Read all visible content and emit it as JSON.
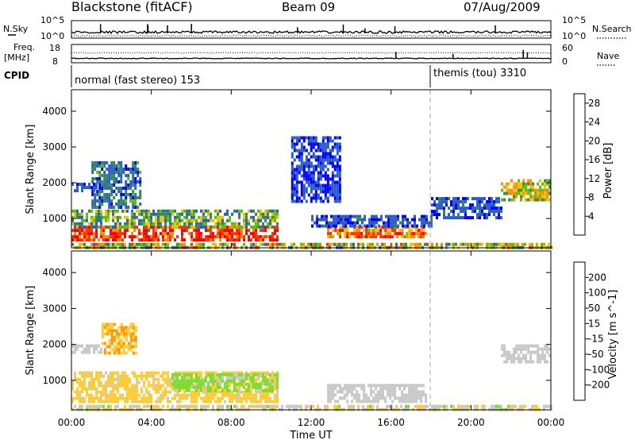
{
  "header": {
    "station": "Blackstone (fitACF)",
    "beam": "Beam 09",
    "date": "07/Aug/2009"
  },
  "summary_panels": {
    "nsky_label": "N.Sky",
    "nsearch_label": "N.Search",
    "freq_label_line1": "Freq.",
    "freq_label_line2": "[MHz]",
    "nave_label": "Nave",
    "cpid_label": "CPID",
    "nsky_ticks": [
      "10^5",
      "10^0"
    ],
    "nsearch_ticks": [
      "10^5",
      "10^0"
    ],
    "freq_ticks": [
      "18",
      "8"
    ],
    "nave_ticks": [
      "60",
      "0"
    ],
    "cpid_segments": [
      {
        "name": "normal (fast stereo) 153",
        "start_hour": 0,
        "end_hour": 18
      },
      {
        "name": "themis (tou) 3310",
        "start_hour": 18,
        "end_hour": 24
      }
    ]
  },
  "colors": {
    "power_scale": [
      "#0000ff",
      "#2a5ec8",
      "#2e8b57",
      "#60c000",
      "#f2c200",
      "#ff8c00",
      "#ff3300",
      "#ff0000"
    ],
    "velocity_scale": [
      "#ff0000",
      "#ff6600",
      "#ff9900",
      "#ffcc33",
      "#c8c8c8",
      "#77dd33",
      "#33aa33",
      "#3355cc",
      "#0000cc"
    ]
  },
  "chart_data": [
    {
      "type": "heatmap",
      "panel": "power",
      "ylabel": "Slant Range [km]",
      "xlabel": "Time UT",
      "x_ticks": [
        "00:00",
        "04:00",
        "08:00",
        "12:00",
        "16:00",
        "20:00",
        "00:00"
      ],
      "y_ticks": [
        "1000",
        "2000",
        "3000",
        "4000"
      ],
      "xlim_hours": [
        0,
        24
      ],
      "ylim_km": [
        180,
        4600
      ],
      "colorbar_label": "Power [dB]",
      "colorbar_ticks": [
        "4",
        "8",
        "12",
        "16",
        "20",
        "24",
        "28"
      ],
      "colorbar_range": [
        0,
        30
      ],
      "regions": [
        {
          "t0": 0.0,
          "t1": 10.3,
          "r0": 400,
          "r1": 800,
          "v0": 20,
          "v1": 30
        },
        {
          "t0": 0.0,
          "t1": 10.3,
          "r0": 750,
          "r1": 1250,
          "v0": 4,
          "v1": 18
        },
        {
          "t0": 1.0,
          "t1": 3.5,
          "r0": 1300,
          "r1": 2600,
          "v0": 2,
          "v1": 12
        },
        {
          "t0": 0.0,
          "t1": 1.2,
          "r0": 1750,
          "r1": 2000,
          "v0": 2,
          "v1": 8
        },
        {
          "t0": 12.8,
          "t1": 17.8,
          "r0": 450,
          "r1": 800,
          "v0": 14,
          "v1": 28
        },
        {
          "t0": 12.0,
          "t1": 18.0,
          "r0": 800,
          "r1": 1100,
          "v0": 2,
          "v1": 8
        },
        {
          "t0": 18.0,
          "t1": 21.5,
          "r0": 1050,
          "r1": 1600,
          "v0": 2,
          "v1": 8
        },
        {
          "t0": 21.5,
          "t1": 24.0,
          "r0": 1500,
          "r1": 2100,
          "v0": 8,
          "v1": 22
        },
        {
          "t0": 11.0,
          "t1": 13.5,
          "r0": 1500,
          "r1": 3300,
          "v0": 2,
          "v1": 6
        },
        {
          "t0": 0.0,
          "t1": 24.0,
          "r0": 200,
          "r1": 320,
          "v0": 6,
          "v1": 24
        }
      ]
    },
    {
      "type": "heatmap",
      "panel": "velocity",
      "ylabel": "Slant Range [km]",
      "xlabel": "Time UT",
      "x_ticks": [
        "00:00",
        "04:00",
        "08:00",
        "12:00",
        "16:00",
        "20:00",
        "00:00"
      ],
      "y_ticks": [
        "1000",
        "2000",
        "3000",
        "4000"
      ],
      "xlim_hours": [
        0,
        24
      ],
      "ylim_km": [
        180,
        4600
      ],
      "colorbar_label": "Velocity [m s^-1]",
      "colorbar_ticks": [
        "200",
        "100",
        "50",
        "15",
        "-15",
        "-50",
        "-100",
        "-200"
      ],
      "colorbar_range": [
        -250,
        250
      ],
      "regions": [
        {
          "t0": 0.0,
          "t1": 10.3,
          "r0": 400,
          "r1": 1250,
          "v0": -80,
          "v1": -20
        },
        {
          "t0": 5.0,
          "t1": 10.3,
          "r0": 700,
          "r1": 1200,
          "v0": 20,
          "v1": 60
        },
        {
          "t0": 1.5,
          "t1": 3.2,
          "r0": 1800,
          "r1": 2600,
          "v0": -120,
          "v1": -40
        },
        {
          "t0": 0.0,
          "t1": 1.5,
          "r0": 1750,
          "r1": 2000,
          "v0": -10,
          "v1": 10
        },
        {
          "t0": 12.8,
          "t1": 17.8,
          "r0": 450,
          "r1": 900,
          "v0": -10,
          "v1": 10
        },
        {
          "t0": 21.5,
          "t1": 24.0,
          "r0": 1500,
          "r1": 2000,
          "v0": -10,
          "v1": 10
        },
        {
          "t0": 0.0,
          "t1": 24.0,
          "r0": 200,
          "r1": 320,
          "v0": -60,
          "v1": 40
        }
      ]
    }
  ]
}
